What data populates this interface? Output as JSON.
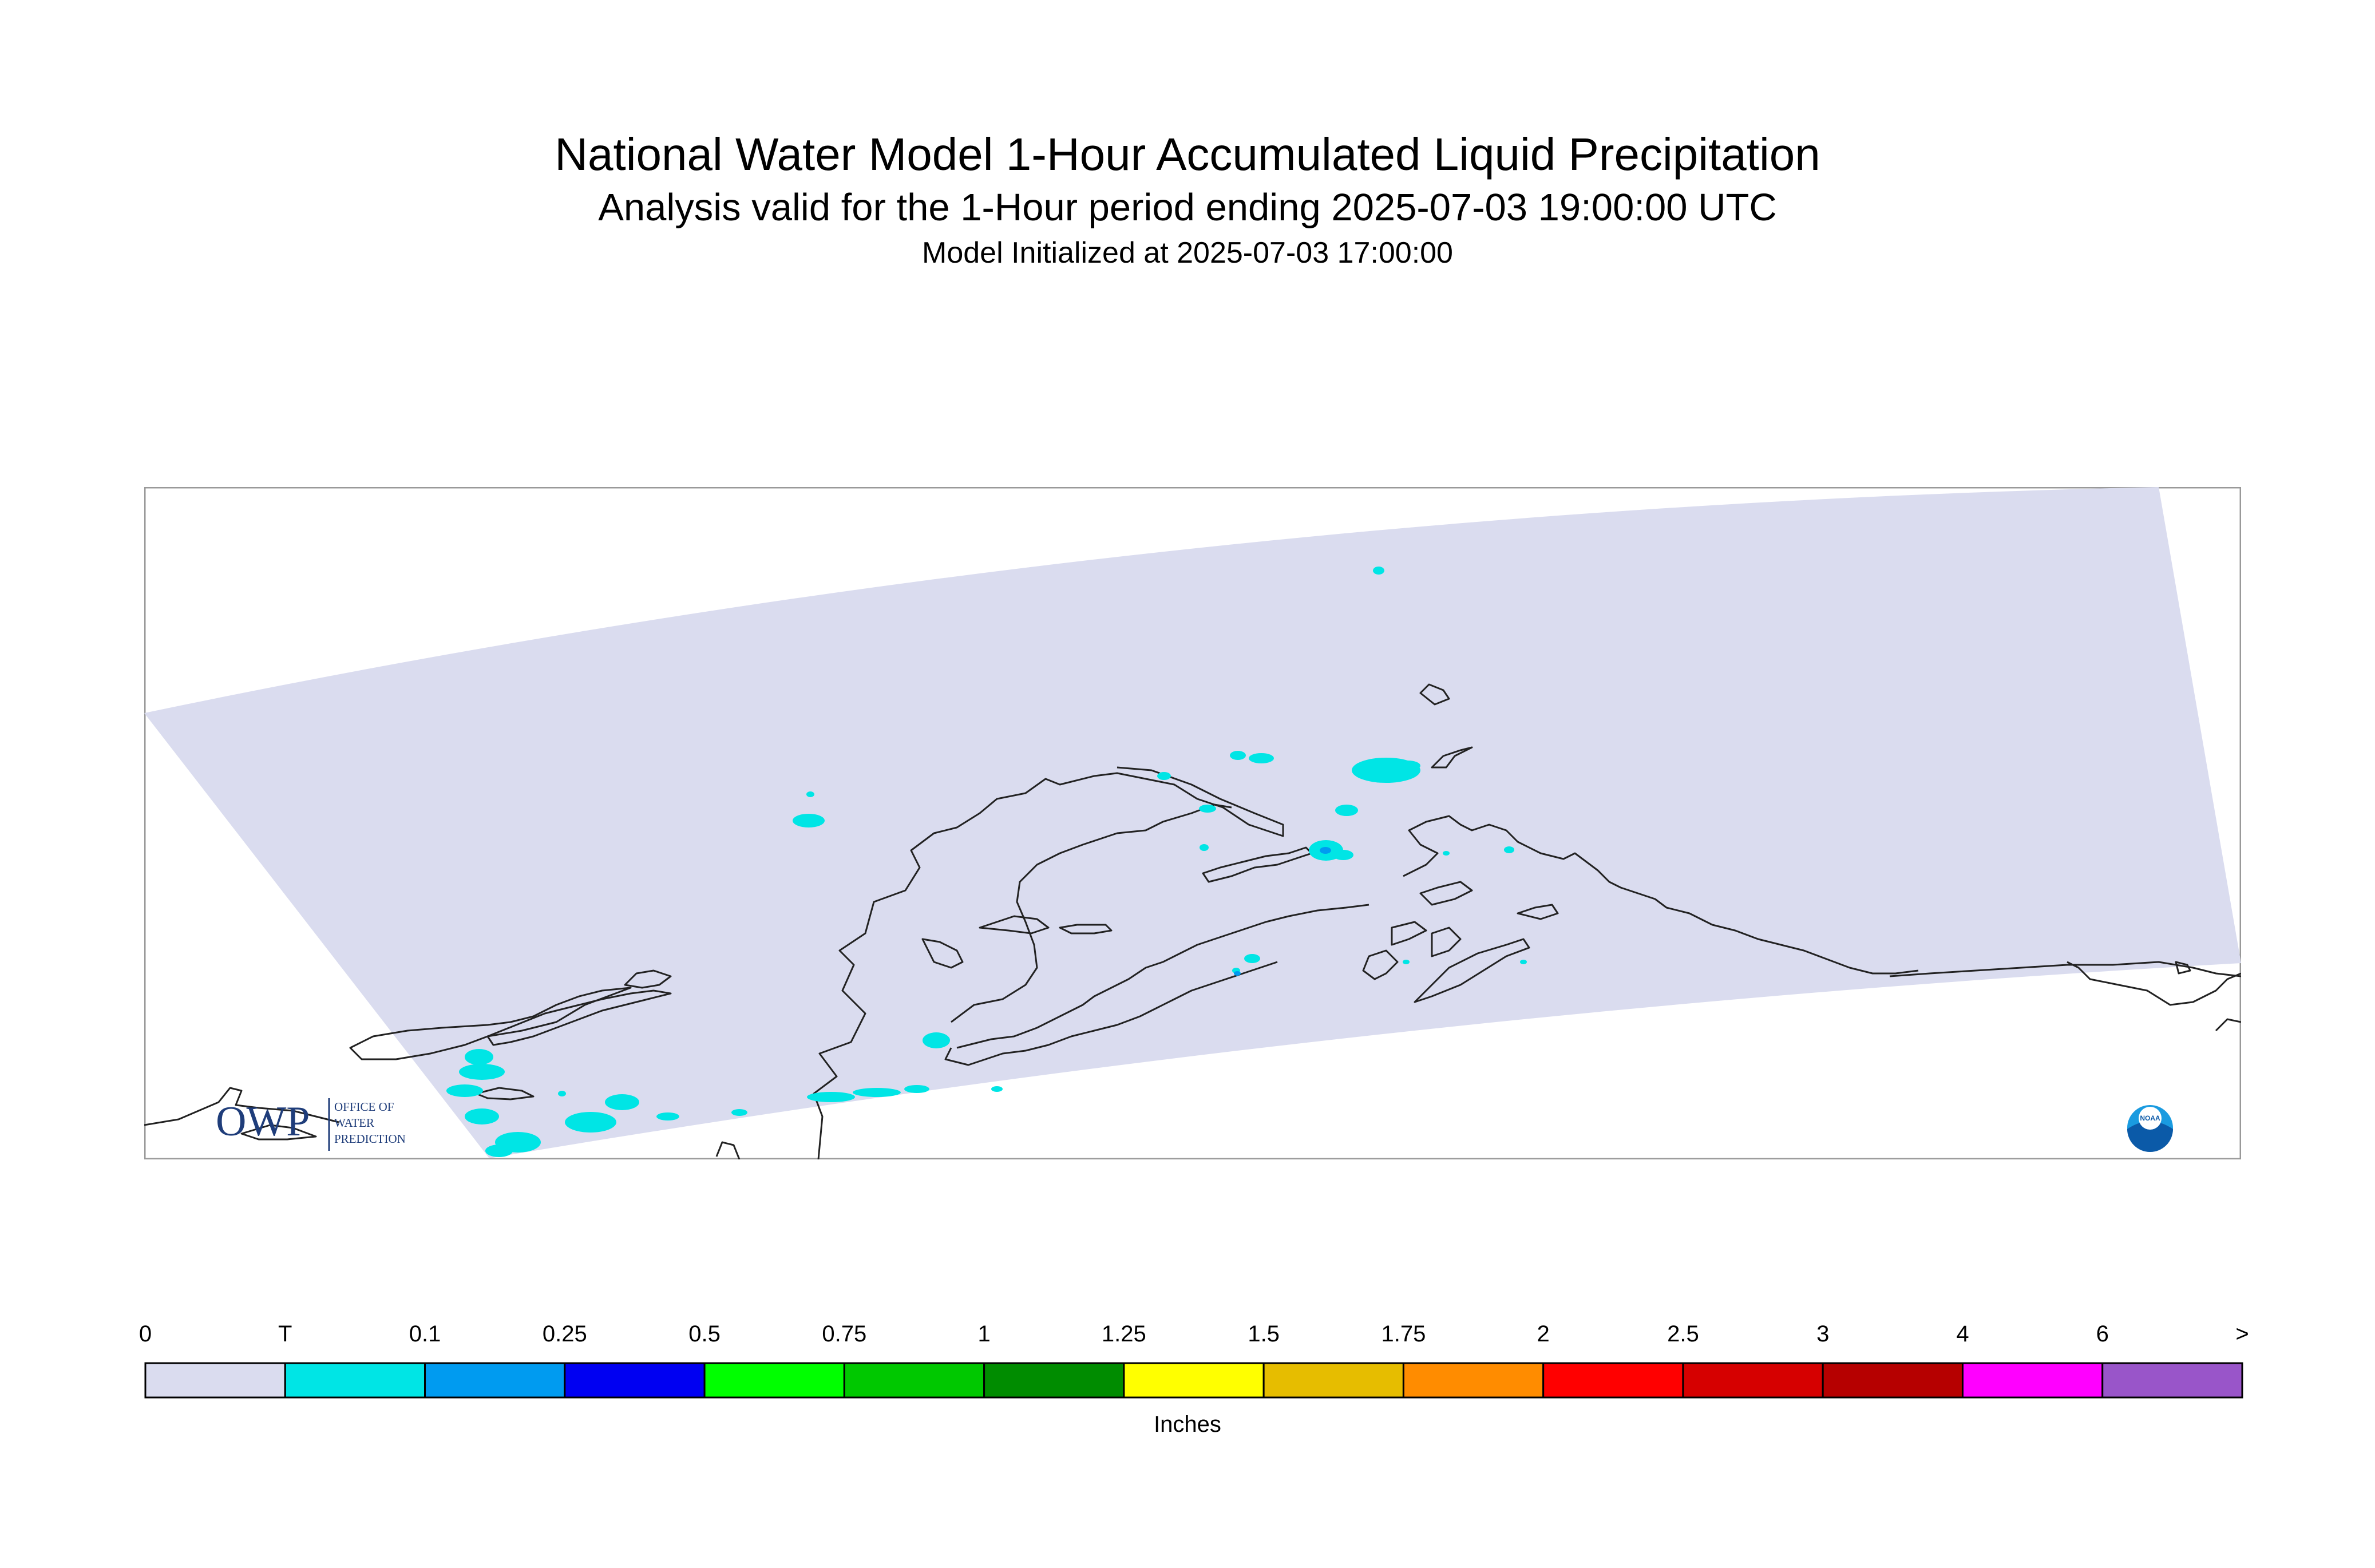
{
  "title": "National Water Model 1-Hour Accumulated Liquid Precipitation",
  "subtitle": "Analysis valid for the 1-Hour period ending 2025-07-03 19:00:00 UTC",
  "initialized": "Model Initialized at 2025-07-03 17:00:00",
  "logo_left_text": "OWP",
  "logo_left_sub": [
    "OFFICE OF",
    "WATER",
    "PREDICTION"
  ],
  "logo_right": "NOAA",
  "legend": {
    "units": "Inches",
    "labels": [
      "0",
      "T",
      "0.1",
      "0.25",
      "0.5",
      "0.75",
      "1",
      "1.25",
      "1.5",
      "1.75",
      "2",
      "2.5",
      "3",
      "4",
      "6",
      ">"
    ],
    "colors": [
      "#dadcef",
      "#00e5e5",
      "#009bf0",
      "#0000f2",
      "#00ff00",
      "#00c800",
      "#008c00",
      "#ffff00",
      "#e6bd00",
      "#ff8c00",
      "#ff0000",
      "#d60000",
      "#b60000",
      "#ff00ff",
      "#9955c9"
    ]
  },
  "colors": {
    "no_precip": "#dadcef",
    "trace": "#00e5e5",
    "coastline": "#222222",
    "frame": "#999999"
  }
}
